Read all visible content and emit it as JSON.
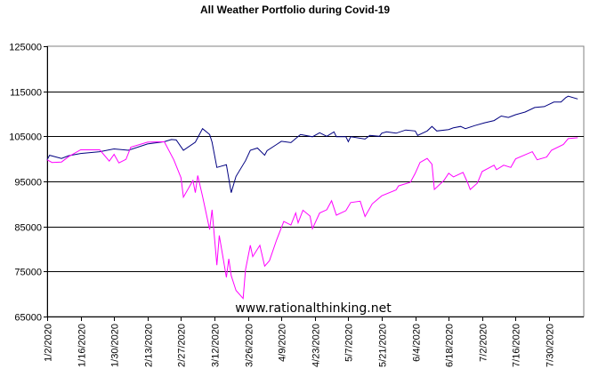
{
  "chart_data": {
    "type": "line",
    "title": "All Weather Portfolio during Covid-19",
    "xlabel": "",
    "ylabel": "",
    "ylim": [
      65000,
      125000
    ],
    "yticks": [
      "65000",
      "75000",
      "85000",
      "95000",
      "105000",
      "115000",
      "125000"
    ],
    "xticks": [
      "1/2/2020",
      "1/16/2020",
      "1/30/2020",
      "2/13/2020",
      "2/27/2020",
      "3/12/2020",
      "3/26/2020",
      "4/9/2020",
      "4/23/2020",
      "5/7/2020",
      "5/21/2020",
      "6/4/2020",
      "6/18/2020",
      "7/2/2020",
      "7/16/2020",
      "7/30/2020"
    ],
    "xlim": [
      "1/2/2020",
      "8/11/2020"
    ],
    "grid": "horizontal",
    "legend": "none",
    "annotation": "www.rationalthinking.net",
    "series": [
      {
        "color": "#000080",
        "x": [
          "1/2/2020",
          "1/3/2020",
          "1/8/2020",
          "1/11/2020",
          "1/16/2020",
          "1/24/2020",
          "1/30/2020",
          "2/5/2020",
          "2/13/2020",
          "2/20/2020",
          "2/23/2020",
          "2/25/2020",
          "2/28/2020",
          "3/4/2020",
          "3/7/2020",
          "3/10/2020",
          "3/11/2020",
          "3/13/2020",
          "3/17/2020",
          "3/19/2020",
          "3/21/2020",
          "3/25/2020",
          "3/27/2020",
          "3/30/2020",
          "4/2/2020",
          "4/3/2020",
          "4/7/2020",
          "4/9/2020",
          "4/13/2020",
          "4/17/2020",
          "4/22/2020",
          "4/25/2020",
          "4/28/2020",
          "5/1/2020",
          "5/2/2020",
          "5/6/2020",
          "5/7/2020",
          "5/8/2020",
          "5/14/2020",
          "5/16/2020",
          "5/20/2020",
          "5/21/2020",
          "5/23/2020",
          "5/27/2020",
          "5/31/2020",
          "6/4/2020",
          "6/5/2020",
          "6/9/2020",
          "6/11/2020",
          "6/13/2020",
          "6/18/2020",
          "6/20/2020",
          "6/23/2020",
          "6/25/2020",
          "6/29/2020",
          "7/3/2020",
          "7/7/2020",
          "7/10/2020",
          "7/13/2020",
          "7/16/2020",
          "7/20/2020",
          "7/24/2020",
          "7/28/2020",
          "8/1/2020",
          "8/4/2020",
          "8/6/2020",
          "8/7/2020",
          "8/11/2020"
        ],
        "values": [
          99800,
          100800,
          100100,
          100700,
          101200,
          101600,
          102200,
          101900,
          103300,
          103800,
          104300,
          104200,
          101900,
          103700,
          106700,
          105400,
          103700,
          98100,
          98700,
          92500,
          96100,
          99600,
          101900,
          102400,
          100800,
          101800,
          103200,
          103900,
          103600,
          105400,
          104900,
          105800,
          105000,
          106000,
          104900,
          104900,
          103800,
          104900,
          104400,
          105200,
          105000,
          105700,
          106000,
          105700,
          106400,
          106200,
          105200,
          106200,
          107200,
          106200,
          106500,
          106900,
          107200,
          106700,
          107400,
          108000,
          108500,
          109500,
          109200,
          109800,
          110400,
          111400,
          111600,
          112600,
          112600,
          113600,
          113900,
          113300
        ]
      },
      {
        "color": "#FF00FF",
        "x": [
          "1/2/2020",
          "1/4/2020",
          "1/8/2020",
          "1/11/2020",
          "1/16/2020",
          "1/24/2020",
          "1/28/2020",
          "1/30/2020",
          "2/1/2020",
          "2/4/2020",
          "2/6/2020",
          "2/13/2020",
          "2/20/2020",
          "2/24/2020",
          "2/27/2020",
          "2/28/2020",
          "3/3/2020",
          "3/4/2020",
          "3/5/2020",
          "3/7/2020",
          "3/10/2020",
          "3/11/2020",
          "3/13/2020",
          "3/14/2020",
          "3/17/2020",
          "3/18/2020",
          "3/19/2020",
          "3/21/2020",
          "3/24/2020",
          "3/25/2020",
          "3/27/2020",
          "3/28/2020",
          "3/31/2020",
          "4/2/2020",
          "4/4/2020",
          "4/7/2020",
          "4/10/2020",
          "4/13/2020",
          "4/15/2020",
          "4/16/2020",
          "4/18/2020",
          "4/21/2020",
          "4/22/2020",
          "4/25/2020",
          "4/28/2020",
          "4/30/2020",
          "5/2/2020",
          "5/6/2020",
          "5/8/2020",
          "5/12/2020",
          "5/14/2020",
          "5/17/2020",
          "5/21/2020",
          "5/27/2020",
          "5/28/2020",
          "6/2/2020",
          "6/4/2020",
          "6/6/2020",
          "6/9/2020",
          "6/11/2020",
          "6/12/2020",
          "6/16/2020",
          "6/18/2020",
          "6/20/2020",
          "6/24/2020",
          "6/26/2020",
          "6/27/2020",
          "6/30/2020",
          "7/2/2020",
          "7/7/2020",
          "7/8/2020",
          "7/11/2020",
          "7/14/2020",
          "7/16/2020",
          "7/23/2020",
          "7/25/2020",
          "7/29/2020",
          "7/31/2020",
          "8/5/2020",
          "8/7/2020",
          "8/11/2020"
        ],
        "values": [
          99800,
          99200,
          99300,
          100500,
          102000,
          102000,
          99500,
          101000,
          99100,
          99900,
          102600,
          103700,
          103800,
          99800,
          95800,
          91500,
          95200,
          92500,
          96300,
          91700,
          84300,
          88700,
          76400,
          83000,
          73700,
          77800,
          74100,
          70800,
          69000,
          75400,
          80800,
          78300,
          80800,
          76200,
          77400,
          82000,
          86100,
          85300,
          88000,
          85800,
          88600,
          87300,
          84500,
          88000,
          88700,
          90700,
          87500,
          88500,
          90300,
          90600,
          87200,
          90000,
          91800,
          93100,
          94000,
          94800,
          96800,
          99200,
          100100,
          98800,
          93200,
          95200,
          96800,
          96000,
          97000,
          94600,
          93200,
          94600,
          97200,
          98600,
          97600,
          98600,
          98100,
          100000,
          101600,
          99800,
          100400,
          101900,
          103200,
          104500,
          104700
        ]
      }
    ]
  }
}
